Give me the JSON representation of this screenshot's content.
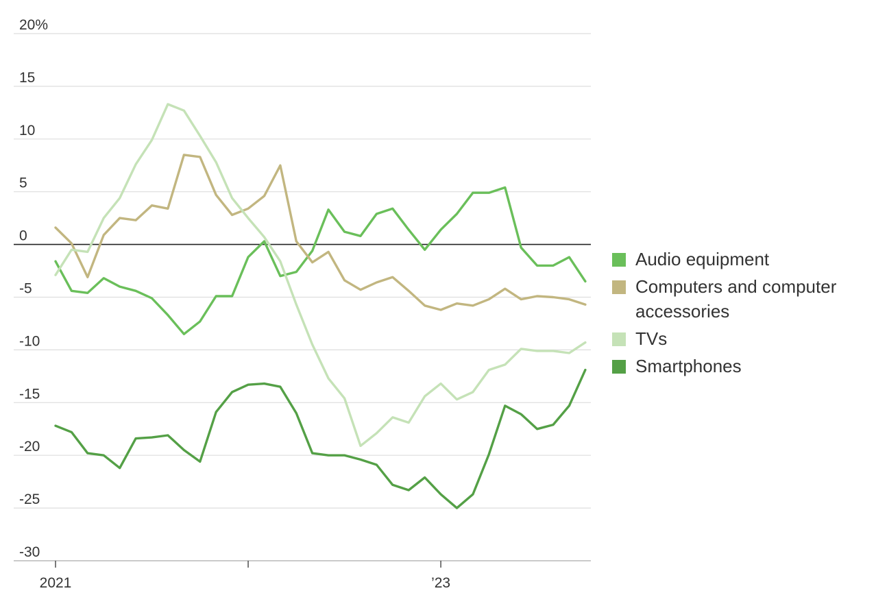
{
  "chart_data": {
    "type": "line",
    "categories": [
      "2021",
      null,
      null,
      null,
      null,
      null,
      null,
      null,
      null,
      null,
      null,
      null,
      null,
      null,
      null,
      null,
      null,
      null,
      null,
      null,
      null,
      null,
      null,
      null,
      "’23",
      null,
      null,
      null,
      null,
      null,
      null,
      null,
      null,
      null
    ],
    "xtick_every": 12,
    "ylim": [
      -30,
      20
    ],
    "yticks": [
      {
        "value": 20,
        "label": "20%"
      },
      15,
      10,
      5,
      0,
      -5,
      -10,
      -15,
      -20,
      -25,
      -30
    ],
    "grid": true,
    "legend": "right",
    "series": [
      {
        "name": "Audio equipment",
        "color": "#6abf5a",
        "values": [
          -1.6,
          -4.4,
          -4.6,
          -3.2,
          -4.0,
          -4.4,
          -5.1,
          -6.7,
          -8.5,
          -7.3,
          -4.9,
          -4.9,
          -1.2,
          0.3,
          -3.0,
          -2.6,
          -0.6,
          3.3,
          1.2,
          0.8,
          2.9,
          3.4,
          1.4,
          -0.5,
          1.4,
          2.9,
          4.9,
          4.9,
          5.4,
          -0.3,
          -2.0,
          -2.0,
          -1.2,
          -3.5
        ]
      },
      {
        "name": "Computers and computer accessories",
        "color": "#c2b680",
        "values": [
          1.6,
          0.1,
          -3.1,
          0.9,
          2.5,
          2.3,
          3.7,
          3.4,
          8.5,
          8.3,
          4.7,
          2.8,
          3.4,
          4.6,
          7.5,
          0.3,
          -1.7,
          -0.7,
          -3.4,
          -4.3,
          -3.6,
          -3.1,
          -4.4,
          -5.8,
          -6.2,
          -5.6,
          -5.8,
          -5.2,
          -4.2,
          -5.2,
          -4.9,
          -5.0,
          -5.2,
          -5.7
        ]
      },
      {
        "name": "TVs",
        "color": "#c5e2b7",
        "values": [
          -2.9,
          -0.5,
          -0.7,
          2.5,
          4.4,
          7.6,
          9.9,
          13.3,
          12.7,
          10.3,
          7.8,
          4.4,
          2.5,
          0.7,
          -1.6,
          -5.7,
          -9.5,
          -12.7,
          -14.6,
          -19.1,
          -17.9,
          -16.4,
          -16.9,
          -14.4,
          -13.2,
          -14.7,
          -14.0,
          -11.9,
          -11.4,
          -9.9,
          -10.1,
          -10.1,
          -10.3,
          -9.3
        ]
      },
      {
        "name": "Smartphones",
        "color": "#54a046",
        "values": [
          -17.2,
          -17.8,
          -19.8,
          -20.0,
          -21.2,
          -18.4,
          -18.3,
          -18.1,
          -19.5,
          -20.6,
          -15.9,
          -14.0,
          -13.3,
          -13.2,
          -13.5,
          -16.0,
          -19.8,
          -20.0,
          -20.0,
          -20.4,
          -20.9,
          -22.8,
          -23.3,
          -22.1,
          -23.7,
          -25.0,
          -23.7,
          -19.9,
          -15.3,
          -16.1,
          -17.5,
          -17.1,
          -15.3,
          -11.9
        ]
      }
    ]
  }
}
